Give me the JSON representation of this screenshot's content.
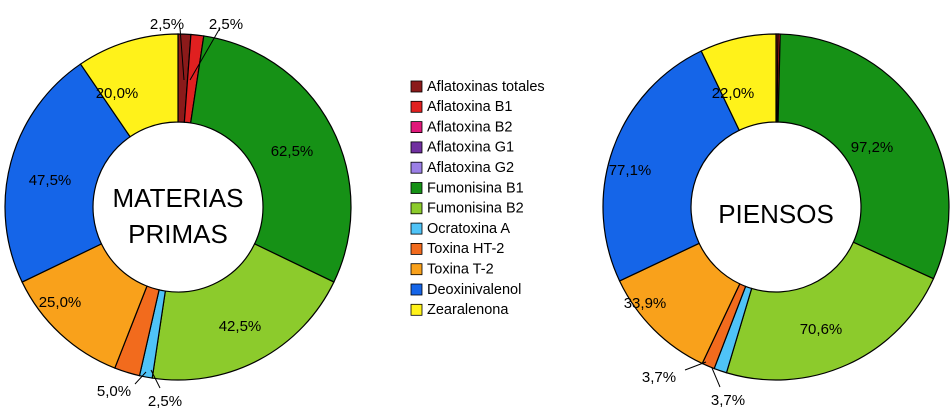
{
  "chart_data": [
    {
      "type": "donut",
      "center_label": [
        "MATERIAS",
        "PRIMAS"
      ],
      "legend_position": "center",
      "series": [
        {
          "name": "Aflatoxinas totales",
          "value": 2.5,
          "label": "2,5%",
          "color": "#8B1A1A"
        },
        {
          "name": "Aflatoxina B1",
          "value": 2.5,
          "label": "2,5%",
          "color": "#E02020"
        },
        {
          "name": "Aflatoxina B2",
          "value": 0,
          "label": "",
          "color": "#E0187A"
        },
        {
          "name": "Aflatoxina G1",
          "value": 0,
          "label": "",
          "color": "#7030A0"
        },
        {
          "name": "Aflatoxina G2",
          "value": 0,
          "label": "",
          "color": "#9B7FE6"
        },
        {
          "name": "Fumonisina B1",
          "value": 62.5,
          "label": "62,5%",
          "color": "#169116"
        },
        {
          "name": "Fumonisina B2",
          "value": 42.5,
          "label": "42,5%",
          "color": "#8CCB2C"
        },
        {
          "name": "Ocratoxina A",
          "value": 2.5,
          "label": "2,5%",
          "color": "#4FC3F7"
        },
        {
          "name": "Toxina HT-2",
          "value": 5.0,
          "label": "5,0%",
          "color": "#F26B1D"
        },
        {
          "name": "Toxina T-2",
          "value": 25.0,
          "label": "25,0%",
          "color": "#F9A11B"
        },
        {
          "name": "Deoxinivalenol",
          "value": 47.5,
          "label": "47,5%",
          "color": "#1565E8"
        },
        {
          "name": "Zearalenona",
          "value": 20.0,
          "label": "20,0%",
          "color": "#FFF21A"
        }
      ]
    },
    {
      "type": "donut",
      "center_label": [
        "PIENSOS"
      ],
      "series": [
        {
          "name": "Aflatoxinas totales",
          "value": 0.6,
          "label": "",
          "color": "#8B1A1A"
        },
        {
          "name": "Aflatoxina B1",
          "value": 0.6,
          "label": "",
          "color": "#E02020"
        },
        {
          "name": "Aflatoxina B2",
          "value": 0,
          "label": "",
          "color": "#E0187A"
        },
        {
          "name": "Aflatoxina G1",
          "value": 0,
          "label": "",
          "color": "#7030A0"
        },
        {
          "name": "Aflatoxina G2",
          "value": 0,
          "label": "",
          "color": "#9B7FE6"
        },
        {
          "name": "Fumonisina B1",
          "value": 97.2,
          "label": "97,2%",
          "color": "#169116"
        },
        {
          "name": "Fumonisina B2",
          "value": 70.6,
          "label": "70,6%",
          "color": "#8CCB2C"
        },
        {
          "name": "Ocratoxina A",
          "value": 3.7,
          "label": "3,7%",
          "color": "#4FC3F7"
        },
        {
          "name": "Toxina HT-2",
          "value": 3.7,
          "label": "3,7%",
          "color": "#F26B1D"
        },
        {
          "name": "Toxina T-2",
          "value": 33.9,
          "label": "33,9%",
          "color": "#F9A11B"
        },
        {
          "name": "Deoxinivalenol",
          "value": 77.1,
          "label": "77,1%",
          "color": "#1565E8"
        },
        {
          "name": "Zearalenona",
          "value": 22.0,
          "label": "22,0%",
          "color": "#FFF21A"
        }
      ]
    }
  ]
}
